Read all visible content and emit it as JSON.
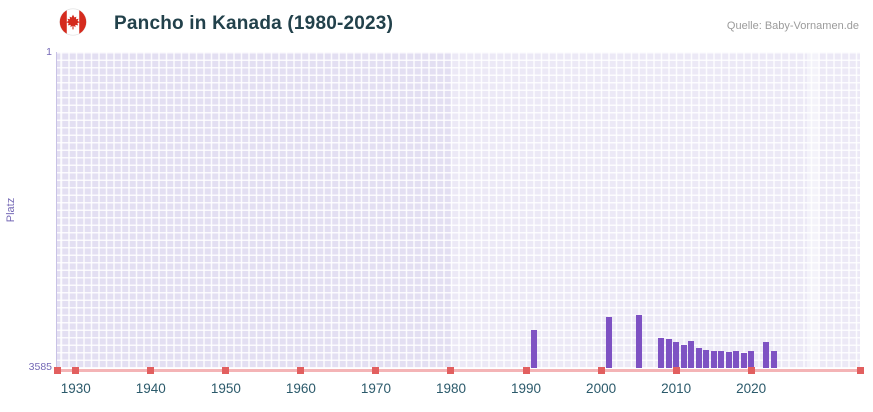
{
  "header": {
    "title": "Pancho in Kanada (1980-2023)",
    "source": "Quelle: Baby-Vornamen.de",
    "flag": "canada-flag"
  },
  "colors": {
    "bar": "#7e52c3",
    "plot_background": "#e3dff2",
    "axis_line": "#f4b4b6",
    "axis_tick": "#e25f5f",
    "purple_text": "#7569b6",
    "title_text": "#22414b"
  },
  "chart_data": {
    "type": "bar",
    "title": "Pancho in Kanada (1980-2023)",
    "xlabel": "",
    "ylabel": "Platz",
    "legend": false,
    "grid": true,
    "y_axis": {
      "min": 1,
      "max": 3585,
      "inverted": true,
      "tick_top": "1",
      "tick_bottom": "3585"
    },
    "x_axis": {
      "range": [
        1927.5,
        2034.5
      ],
      "ticks": [
        1930,
        1940,
        1950,
        1960,
        1970,
        1980,
        1990,
        2000,
        2010,
        2020
      ]
    },
    "bar_color": "#7e52c3",
    "data_range_band": [
      1980,
      2034.5
    ],
    "right_highlight_band": [
      2027.5,
      2029.2
    ],
    "points": [
      {
        "year": 1991,
        "rank": 3154
      },
      {
        "year": 2001,
        "rank": 3011
      },
      {
        "year": 2005,
        "rank": 2987
      },
      {
        "year": 2008,
        "rank": 3247
      },
      {
        "year": 2009,
        "rank": 3259
      },
      {
        "year": 2010,
        "rank": 3290
      },
      {
        "year": 2011,
        "rank": 3318
      },
      {
        "year": 2012,
        "rank": 3281
      },
      {
        "year": 2013,
        "rank": 3360
      },
      {
        "year": 2014,
        "rank": 3383
      },
      {
        "year": 2015,
        "rank": 3395
      },
      {
        "year": 2016,
        "rank": 3395
      },
      {
        "year": 2017,
        "rank": 3406
      },
      {
        "year": 2018,
        "rank": 3395
      },
      {
        "year": 2019,
        "rank": 3417
      },
      {
        "year": 2020,
        "rank": 3395
      },
      {
        "year": 2022,
        "rank": 3290
      },
      {
        "year": 2023,
        "rank": 3392
      }
    ]
  }
}
